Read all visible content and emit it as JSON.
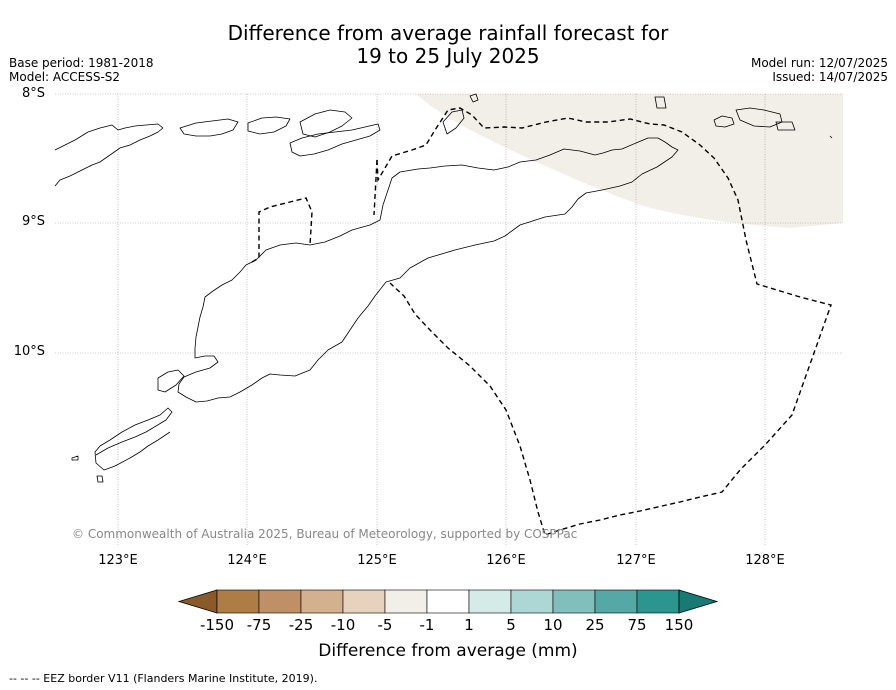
{
  "title": {
    "line1": "Difference from average rainfall forecast for",
    "line2": "19 to 25 July 2025"
  },
  "meta": {
    "base_period": "Base period: 1981-2018",
    "model": "Model: ACCESS-S2",
    "model_run": "Model run: 12/07/2025",
    "issued": "Issued: 14/07/2025"
  },
  "map": {
    "lat_labels": [
      "8°S",
      "9°S",
      "10°S"
    ],
    "lon_labels": [
      "123°E",
      "124°E",
      "125°E",
      "126°E",
      "127°E",
      "128°E"
    ],
    "copyright": "© Commonwealth of Australia 2025, Bureau of Meteorology, supported by COSPPac",
    "shaded_region": {
      "category": "-1 to -5",
      "color": "#f2efe9"
    },
    "eez_style": "dashed black line"
  },
  "colorbar": {
    "labels": [
      "-150",
      "-75",
      "-25",
      "-10",
      "-5",
      "-1",
      "1",
      "5",
      "10",
      "25",
      "75",
      "150"
    ],
    "colors": [
      "#8b5a2b",
      "#ae7c45",
      "#bf9068",
      "#d3b08e",
      "#e6d2bd",
      "#f2efe9",
      "#ffffff",
      "#d5ebe8",
      "#acd7d4",
      "#80bfbb",
      "#55a8a5",
      "#2b9690",
      "#177a75"
    ],
    "title": "Difference from average (mm)"
  },
  "footer": "--  --  -- EEZ border V11 (Flanders Marine Institute, 2019)."
}
